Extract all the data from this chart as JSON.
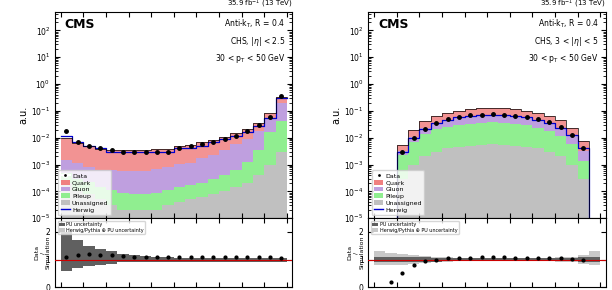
{
  "figure_width": 6.12,
  "figure_height": 2.9,
  "dpi": 100,
  "header_text": "35.9 fb$^{-1}$ (13 TeV)",
  "bdt_bins": [
    -1.0,
    -0.9,
    -0.8,
    -0.7,
    -0.6,
    -0.5,
    -0.4,
    -0.3,
    -0.2,
    -0.1,
    0.0,
    0.1,
    0.2,
    0.3,
    0.4,
    0.5,
    0.6,
    0.7,
    0.8,
    0.9,
    1.0
  ],
  "panel1": {
    "cms_label": "CMS",
    "info_text": "Anti-k$_{\\rm T}$, R = 0.4\nCHS, |$\\eta$| < 2.5\n30 < p$_{\\rm T}$ < 50 GeV",
    "ylabel_main": "a.u.",
    "ylim_main": [
      1e-05,
      500.0
    ],
    "xlim": [
      -1.05,
      1.05
    ],
    "quark_vals": [
      0.008,
      0.005,
      0.004,
      0.003,
      0.003,
      0.003,
      0.003,
      0.003,
      0.003,
      0.003,
      0.004,
      0.004,
      0.005,
      0.006,
      0.007,
      0.009,
      0.012,
      0.018,
      0.03,
      0.15
    ],
    "gluon_vals": [
      0.001,
      0.0008,
      0.0006,
      0.0005,
      0.0005,
      0.0005,
      0.0005,
      0.0005,
      0.0006,
      0.0007,
      0.0009,
      0.001,
      0.0015,
      0.002,
      0.003,
      0.005,
      0.008,
      0.015,
      0.04,
      0.15
    ],
    "pileup_vals": [
      0.0003,
      0.0002,
      0.00015,
      0.0001,
      8e-05,
      7e-05,
      6e-05,
      6e-05,
      7e-05,
      8e-05,
      0.0001,
      0.00012,
      0.00015,
      0.0002,
      0.0003,
      0.0005,
      0.001,
      0.003,
      0.015,
      0.04
    ],
    "unassigned_vals": [
      0.0002,
      0.0001,
      8e-05,
      5e-05,
      3e-05,
      2e-05,
      2e-05,
      2e-05,
      2e-05,
      3e-05,
      4e-05,
      5e-05,
      6e-05,
      8e-05,
      0.0001,
      0.00015,
      0.0002,
      0.0004,
      0.001,
      0.003
    ],
    "data_vals": [
      0.018,
      0.007,
      0.005,
      0.004,
      0.0035,
      0.003,
      0.003,
      0.003,
      0.003,
      0.003,
      0.004,
      0.005,
      0.006,
      0.007,
      0.009,
      0.012,
      0.018,
      0.03,
      0.06,
      0.35
    ],
    "herwig_vals": [
      0.012,
      0.007,
      0.005,
      0.004,
      0.003,
      0.003,
      0.003,
      0.003,
      0.003,
      0.003,
      0.004,
      0.004,
      0.005,
      0.007,
      0.009,
      0.012,
      0.017,
      0.028,
      0.055,
      0.3
    ],
    "ratio_data": [
      1.1,
      1.15,
      1.2,
      1.18,
      1.15,
      1.12,
      1.1,
      1.08,
      1.08,
      1.08,
      1.08,
      1.08,
      1.1,
      1.1,
      1.1,
      1.1,
      1.1,
      1.1,
      1.08,
      1.05
    ],
    "pu_unc_lo": [
      0.6,
      0.7,
      0.75,
      0.8,
      0.85,
      0.9,
      0.9,
      0.9,
      0.9,
      0.9,
      0.9,
      0.9,
      0.9,
      0.9,
      0.9,
      0.9,
      0.9,
      0.9,
      0.9,
      0.9
    ],
    "pu_unc_hi": [
      2.0,
      1.7,
      1.5,
      1.4,
      1.3,
      1.2,
      1.15,
      1.12,
      1.1,
      1.08,
      1.06,
      1.05,
      1.05,
      1.05,
      1.05,
      1.05,
      1.05,
      1.05,
      1.05,
      1.05
    ],
    "hpythia_unc_lo": [
      0.7,
      0.8,
      0.85,
      0.88,
      0.9,
      0.92,
      0.93,
      0.93,
      0.93,
      0.93,
      0.93,
      0.93,
      0.93,
      0.93,
      0.93,
      0.93,
      0.93,
      0.93,
      0.93,
      0.93
    ],
    "hpythia_unc_hi": [
      1.5,
      1.4,
      1.35,
      1.3,
      1.25,
      1.2,
      1.15,
      1.12,
      1.1,
      1.08,
      1.07,
      1.07,
      1.07,
      1.07,
      1.07,
      1.07,
      1.07,
      1.07,
      1.07,
      1.07
    ],
    "ratio_ylim": [
      0,
      2.5
    ],
    "ratio_yticks": [
      0,
      1,
      2
    ]
  },
  "panel2": {
    "cms_label": "CMS",
    "info_text": "Anti-k$_{\\rm T}$, R = 0.4\nCHS, 3 < |$\\eta$| < 5\n30 < p$_{\\rm T}$ < 50 GeV",
    "ylabel_main": "a.u.",
    "ylim_main": [
      1e-05,
      500.0
    ],
    "xlim": [
      -1.05,
      1.05
    ],
    "active_range": [
      -0.82,
      0.88
    ],
    "quark_vals": [
      0.0,
      0.0,
      0.002,
      0.008,
      0.018,
      0.028,
      0.038,
      0.048,
      0.055,
      0.06,
      0.062,
      0.06,
      0.055,
      0.048,
      0.04,
      0.032,
      0.022,
      0.012,
      0.004,
      0.0
    ],
    "gluon_vals": [
      0.0,
      0.0,
      0.001,
      0.004,
      0.009,
      0.014,
      0.019,
      0.024,
      0.027,
      0.03,
      0.031,
      0.03,
      0.027,
      0.024,
      0.02,
      0.016,
      0.011,
      0.006,
      0.002,
      0.0
    ],
    "pileup_vals": [
      0.0,
      0.0,
      0.002,
      0.006,
      0.012,
      0.018,
      0.022,
      0.026,
      0.028,
      0.03,
      0.031,
      0.03,
      0.028,
      0.025,
      0.02,
      0.015,
      0.01,
      0.005,
      0.001,
      0.0
    ],
    "unassigned_vals": [
      0.0,
      0.0,
      0.0003,
      0.001,
      0.002,
      0.003,
      0.004,
      0.0045,
      0.005,
      0.0055,
      0.006,
      0.0055,
      0.005,
      0.0045,
      0.004,
      0.003,
      0.002,
      0.001,
      0.0003,
      0.0
    ],
    "data_vals": [
      0.0,
      0.0,
      0.003,
      0.01,
      0.022,
      0.035,
      0.048,
      0.06,
      0.068,
      0.073,
      0.075,
      0.073,
      0.067,
      0.058,
      0.048,
      0.037,
      0.025,
      0.013,
      0.004,
      0.0
    ],
    "herwig_vals": [
      0.0,
      0.0,
      0.003,
      0.01,
      0.022,
      0.034,
      0.046,
      0.058,
      0.066,
      0.071,
      0.073,
      0.071,
      0.065,
      0.057,
      0.047,
      0.036,
      0.024,
      0.013,
      0.004,
      0.0
    ],
    "ratio_data": [
      0.0,
      0.2,
      0.5,
      0.8,
      0.95,
      1.0,
      1.05,
      1.07,
      1.07,
      1.08,
      1.08,
      1.08,
      1.07,
      1.07,
      1.07,
      1.06,
      1.05,
      1.03,
      1.0,
      0.0
    ],
    "pu_unc_lo": [
      0.9,
      0.9,
      0.9,
      0.9,
      0.9,
      0.92,
      0.93,
      0.94,
      0.94,
      0.94,
      0.94,
      0.94,
      0.94,
      0.94,
      0.94,
      0.94,
      0.94,
      0.94,
      0.9,
      0.9
    ],
    "pu_unc_hi": [
      1.1,
      1.1,
      1.1,
      1.1,
      1.08,
      1.07,
      1.06,
      1.06,
      1.06,
      1.06,
      1.06,
      1.06,
      1.06,
      1.06,
      1.06,
      1.06,
      1.06,
      1.06,
      1.1,
      1.1
    ],
    "hpythia_unc_lo": [
      0.8,
      0.8,
      0.8,
      0.85,
      0.88,
      0.9,
      0.92,
      0.93,
      0.94,
      0.94,
      0.94,
      0.94,
      0.94,
      0.94,
      0.94,
      0.93,
      0.92,
      0.9,
      0.85,
      0.8
    ],
    "hpythia_unc_hi": [
      1.3,
      1.25,
      1.2,
      1.15,
      1.12,
      1.1,
      1.08,
      1.07,
      1.06,
      1.06,
      1.06,
      1.06,
      1.06,
      1.06,
      1.06,
      1.07,
      1.08,
      1.1,
      1.15,
      1.3
    ],
    "ratio_ylim": [
      0,
      2.5
    ],
    "ratio_yticks": [
      0,
      1,
      2
    ]
  },
  "colors": {
    "quark": "#f08080",
    "gluon": "#bf9fdf",
    "pileup": "#90ee90",
    "unassigned": "#c0c0c0",
    "herwig": "#0000cc",
    "data": "black",
    "pu_unc": "#606060",
    "hpythia_unc": "#c8c8c8",
    "ratio_line": "#cc0000"
  }
}
